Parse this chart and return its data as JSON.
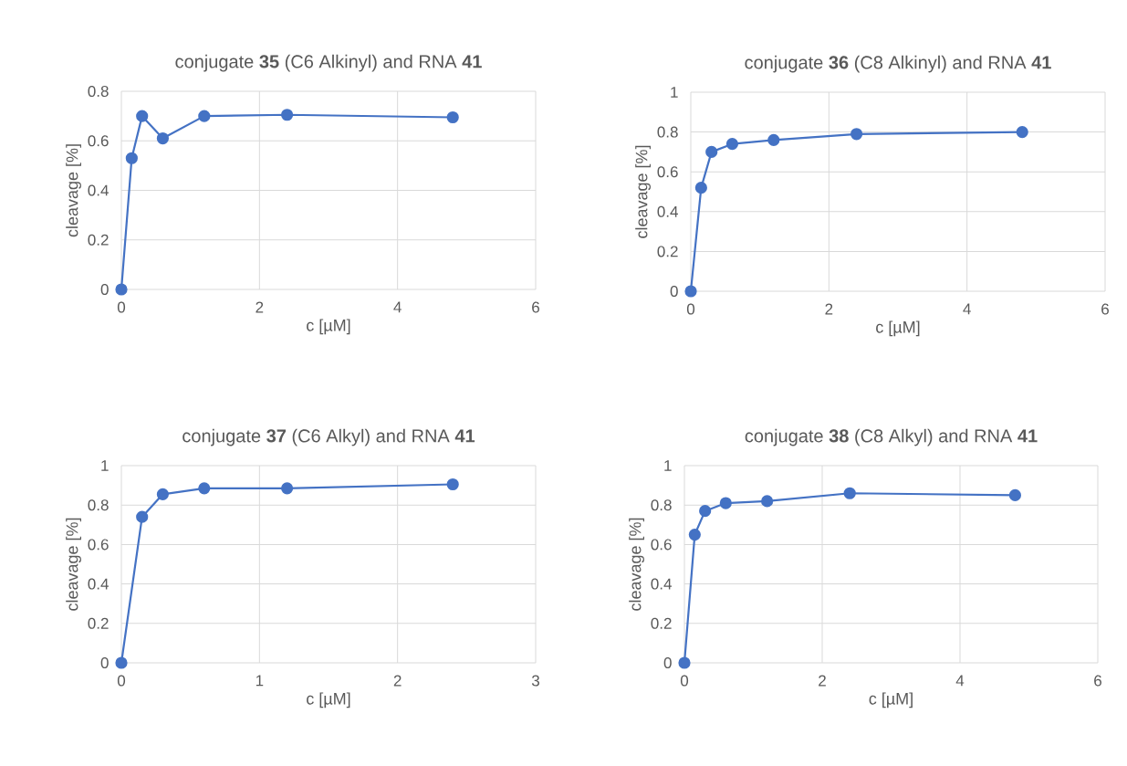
{
  "chart_data": [
    {
      "type": "line",
      "title": "conjugate **35** (C6 Alkinyl) and RNA **41**",
      "xlabel": "c [µM]",
      "ylabel": "cleavage [%]",
      "x": [
        0,
        0.15,
        0.3,
        0.6,
        1.2,
        2.4,
        4.8
      ],
      "values": [
        0,
        0.53,
        0.7,
        0.61,
        0.7,
        0.705,
        0.695
      ],
      "color": "#4472c4",
      "marker": "circle",
      "grid": true,
      "xlim": [
        0,
        6
      ],
      "xticks": [
        0,
        2,
        4,
        6
      ],
      "ylim": [
        0,
        0.8
      ],
      "yticks": [
        0,
        0.2,
        0.4,
        0.6,
        0.8
      ]
    },
    {
      "type": "line",
      "title": "conjugate **36** (C8 Alkinyl) and RNA **41**",
      "xlabel": "c [µM]",
      "ylabel": "cleavage [%]",
      "x": [
        0,
        0.15,
        0.3,
        0.6,
        1.2,
        2.4,
        4.8
      ],
      "values": [
        0,
        0.52,
        0.7,
        0.74,
        0.76,
        0.79,
        0.8
      ],
      "color": "#4472c4",
      "marker": "circle",
      "grid": true,
      "xlim": [
        0,
        6
      ],
      "xticks": [
        0,
        2,
        4,
        6
      ],
      "ylim": [
        0,
        1
      ],
      "yticks": [
        0,
        0.2,
        0.4,
        0.6,
        0.8,
        1
      ]
    },
    {
      "type": "line",
      "title": "conjugate **37** (C6 Alkyl) and RNA **41**",
      "xlabel": "c [µM]",
      "ylabel": "cleavage [%]",
      "x": [
        0,
        0.15,
        0.3,
        0.6,
        1.2,
        2.4
      ],
      "values": [
        0,
        0.74,
        0.855,
        0.885,
        0.885,
        0.905
      ],
      "color": "#4472c4",
      "marker": "circle",
      "grid": true,
      "xlim": [
        0,
        3
      ],
      "xticks": [
        0,
        1,
        2,
        3
      ],
      "ylim": [
        0,
        1
      ],
      "yticks": [
        0,
        0.2,
        0.4,
        0.6,
        0.8,
        1
      ]
    },
    {
      "type": "line",
      "title": "conjugate **38** (C8 Alkyl) and RNA **41**",
      "xlabel": "c [µM]",
      "ylabel": "cleavage [%]",
      "x": [
        0,
        0.15,
        0.3,
        0.6,
        1.2,
        2.4,
        4.8
      ],
      "values": [
        0,
        0.65,
        0.77,
        0.81,
        0.82,
        0.86,
        0.85
      ],
      "color": "#4472c4",
      "marker": "circle",
      "grid": true,
      "xlim": [
        0,
        6
      ],
      "xticks": [
        0,
        2,
        4,
        6
      ],
      "ylim": [
        0,
        1
      ],
      "yticks": [
        0,
        0.2,
        0.4,
        0.6,
        0.8,
        1
      ]
    }
  ]
}
